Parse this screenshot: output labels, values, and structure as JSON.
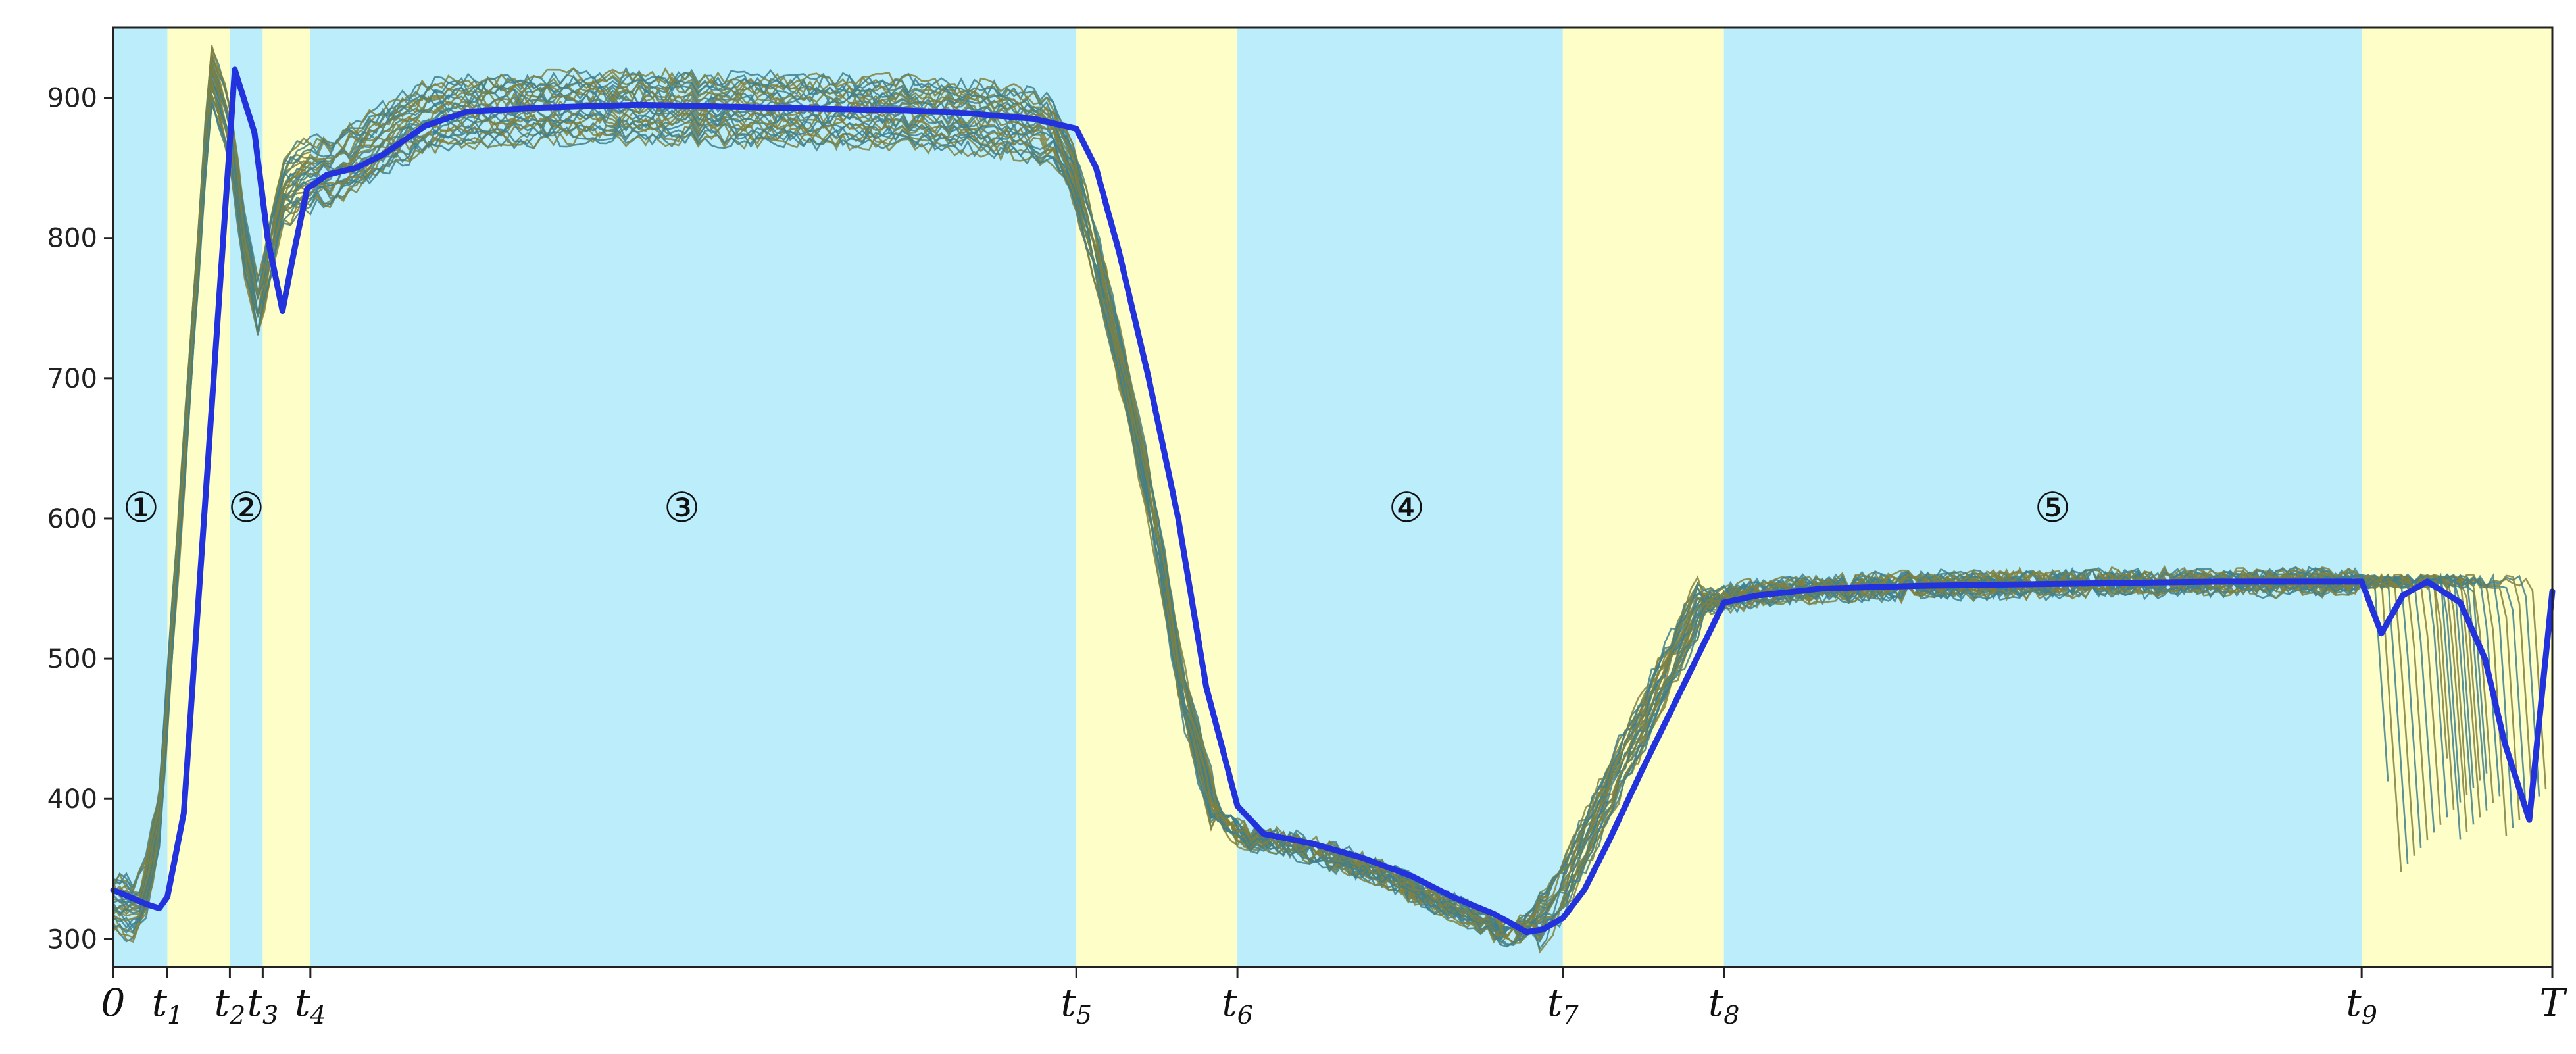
{
  "chart_data": {
    "type": "line",
    "title": "",
    "xlabel": "",
    "ylabel": "",
    "xlim": [
      0,
      1484
    ],
    "ylim": [
      280,
      950
    ],
    "grid": false,
    "y_ticks": [
      300,
      400,
      500,
      600,
      700,
      800,
      900
    ],
    "x_ticks": [
      {
        "x": 0,
        "label": "0",
        "sub": ""
      },
      {
        "x": 33,
        "label": "t",
        "sub": "1"
      },
      {
        "x": 71,
        "label": "t",
        "sub": "2"
      },
      {
        "x": 91,
        "label": "t",
        "sub": "3"
      },
      {
        "x": 120,
        "label": "t",
        "sub": "4"
      },
      {
        "x": 586,
        "label": "t",
        "sub": "5"
      },
      {
        "x": 684,
        "label": "t",
        "sub": "6"
      },
      {
        "x": 882,
        "label": "t",
        "sub": "7"
      },
      {
        "x": 980,
        "label": "t",
        "sub": "8"
      },
      {
        "x": 1368,
        "label": "t",
        "sub": "9"
      },
      {
        "x": 1484,
        "label": "T",
        "sub": ""
      }
    ],
    "phases": [
      {
        "from": 0,
        "to": 33,
        "kind": "blue"
      },
      {
        "from": 33,
        "to": 71,
        "kind": "yellow"
      },
      {
        "from": 71,
        "to": 91,
        "kind": "blue"
      },
      {
        "from": 91,
        "to": 120,
        "kind": "yellow"
      },
      {
        "from": 120,
        "to": 586,
        "kind": "blue"
      },
      {
        "from": 586,
        "to": 684,
        "kind": "yellow"
      },
      {
        "from": 684,
        "to": 882,
        "kind": "blue"
      },
      {
        "from": 882,
        "to": 980,
        "kind": "yellow"
      },
      {
        "from": 980,
        "to": 1368,
        "kind": "blue"
      },
      {
        "from": 1368,
        "to": 1484,
        "kind": "yellow"
      }
    ],
    "phase_colors": {
      "blue": "#bbeefa",
      "yellow": "#fefec8"
    },
    "region_labels": [
      {
        "label": "①",
        "x": 17,
        "y": 608
      },
      {
        "label": "②",
        "x": 81,
        "y": 608
      },
      {
        "label": "③",
        "x": 346,
        "y": 608
      },
      {
        "label": "④",
        "x": 787,
        "y": 608
      },
      {
        "label": "⑤",
        "x": 1180,
        "y": 608
      }
    ],
    "series": [
      {
        "role": "mean",
        "color": "#2233dd",
        "x": [
          0,
          20,
          28,
          33,
          43,
          60,
          74,
          86,
          94,
          103,
          110,
          118,
          130,
          148,
          165,
          190,
          215,
          260,
          320,
          360,
          400,
          440,
          480,
          520,
          560,
          586,
          598,
          612,
          630,
          648,
          665,
          684,
          700,
          730,
          760,
          790,
          815,
          840,
          860,
          870,
          882,
          895,
          910,
          930,
          955,
          980,
          1000,
          1040,
          1100,
          1160,
          1220,
          1280,
          1340,
          1368,
          1380,
          1393,
          1408,
          1428,
          1443,
          1455,
          1470,
          1484
        ],
        "y": [
          335,
          325,
          322,
          330,
          390,
          680,
          920,
          875,
          800,
          748,
          790,
          835,
          845,
          850,
          860,
          880,
          890,
          893,
          895,
          894,
          893,
          892,
          891,
          889,
          885,
          878,
          850,
          790,
          700,
          600,
          480,
          395,
          375,
          368,
          358,
          345,
          330,
          318,
          305,
          307,
          315,
          335,
          370,
          420,
          480,
          540,
          545,
          550,
          552,
          553,
          554,
          555,
          555,
          555,
          518,
          545,
          555,
          540,
          500,
          440,
          385,
          548
        ]
      }
    ],
    "ensemble": {
      "count": 30,
      "colors": [
        "#3f7f8c",
        "#7f8040"
      ],
      "note_none": ""
    }
  }
}
